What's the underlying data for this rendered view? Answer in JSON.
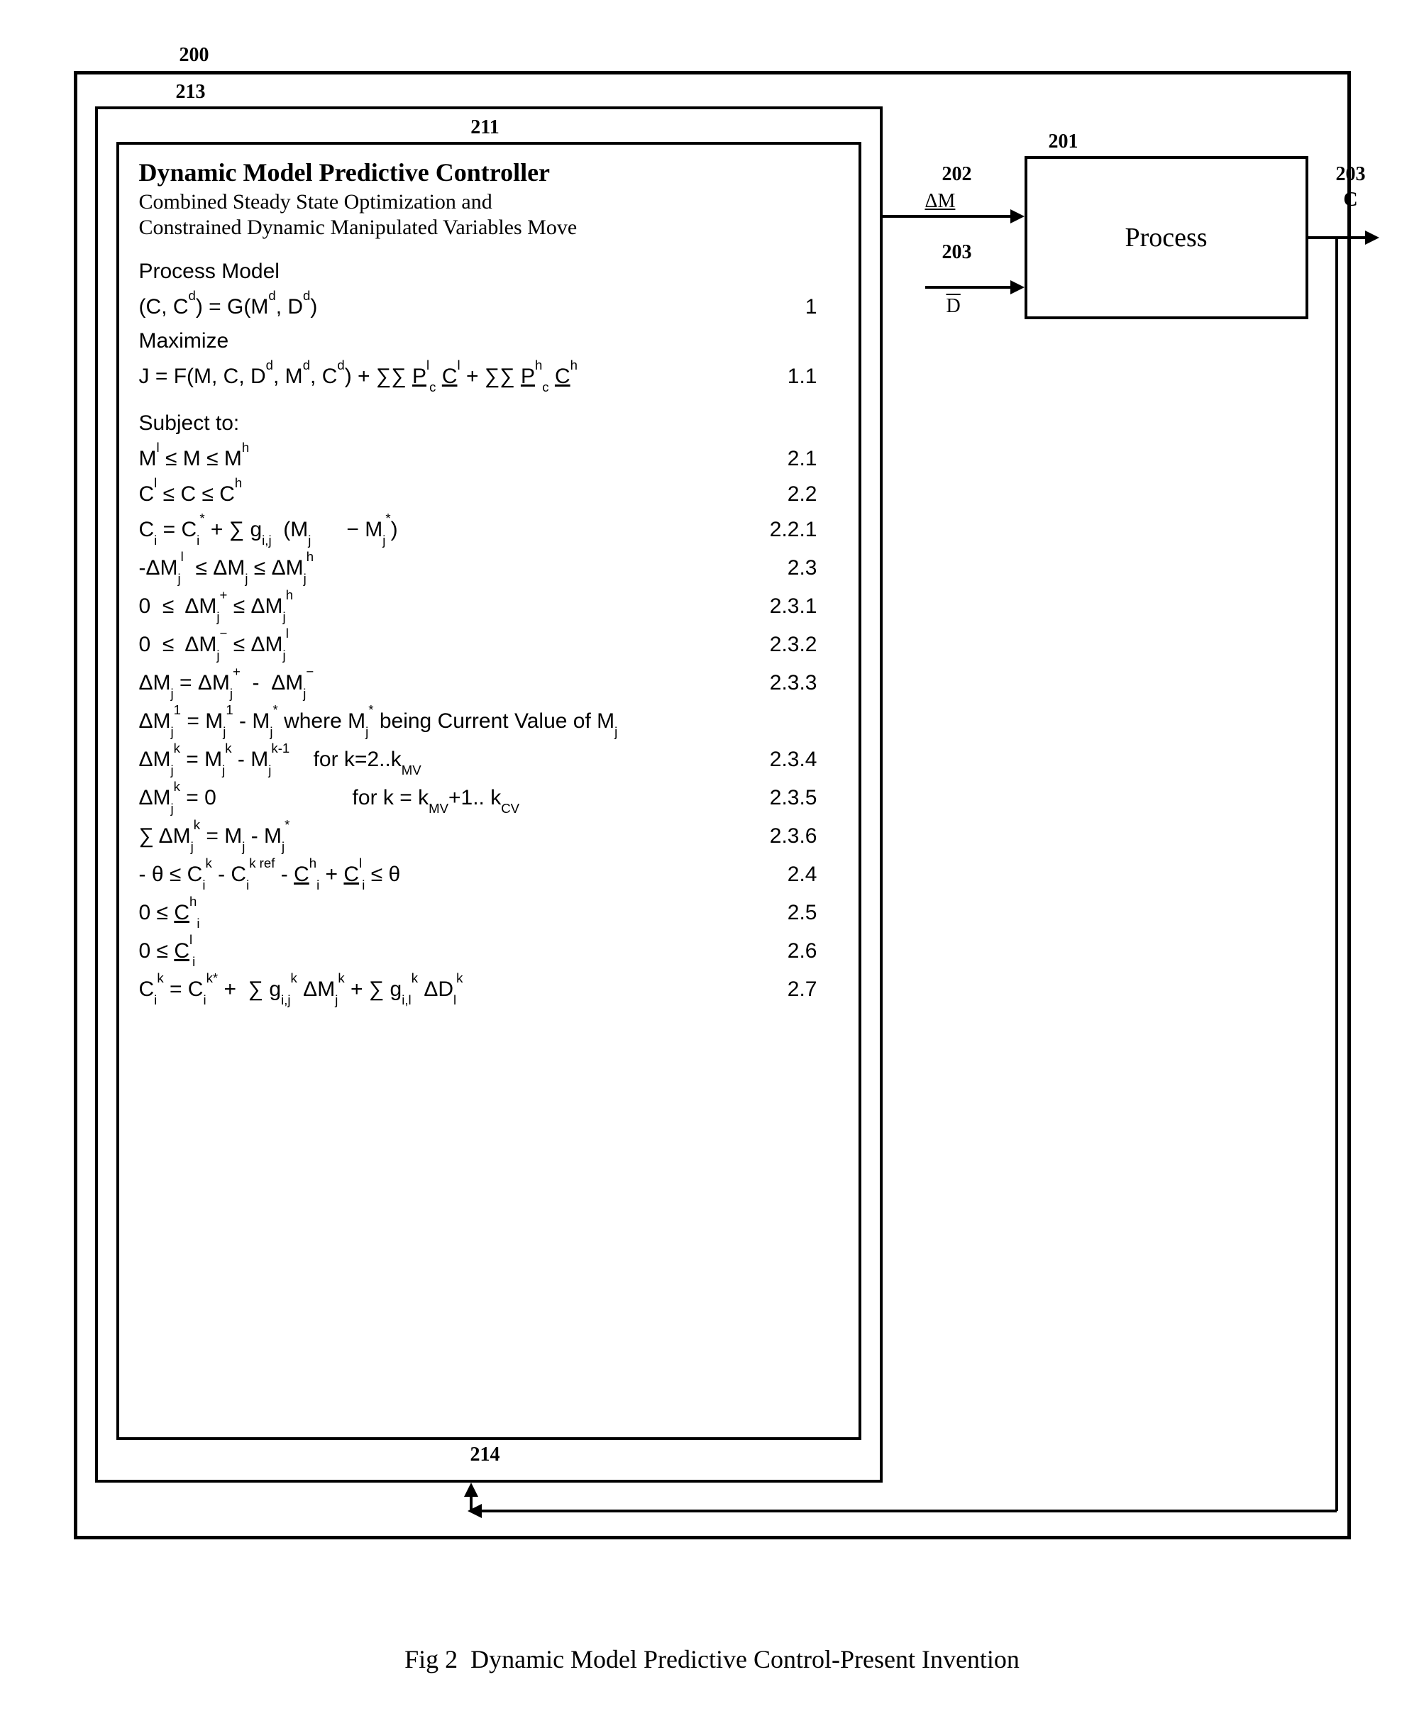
{
  "refs": {
    "outer": "200",
    "controller_outer": "213",
    "controller_inner_top": "211",
    "controller_inner_bottom": "214",
    "process": "201",
    "deltaM_line": "202",
    "D_line": "203",
    "C_out": "203",
    "C_out_letter": "C"
  },
  "signals": {
    "deltaM": "ΔM",
    "D": "D"
  },
  "process_label": "Process",
  "controller": {
    "title": "Dynamic Model Predictive Controller",
    "sub1": "Combined Steady State Optimization and",
    "sub2": "Constrained Dynamic Manipulated Variables Move",
    "proc_model_hdr": "Process Model",
    "maximize_hdr": "Maximize",
    "subject_hdr": "Subject to:"
  },
  "equations": [
    {
      "id": "eq1",
      "expr_html": "(C, C<sup>d</sup>) = G(M<sup>d</sup>, D<sup>d</sup>)",
      "num": "1"
    },
    {
      "id": "eq11",
      "expr_html": "J = F(M, C, D<sup>d</sup>, M<sup>d</sup>, C<sup>d</sup>) + ∑∑ <span class=\"und\">P</span><sup>l</sup><sub>c</sub> <span class=\"und\">C</span><sup>l</sup> + ∑∑ <span class=\"und\">P</span><sup>h</sup><sub>c</sub> <span class=\"und\">C</span><sup>h</sup>",
      "num": "1.1"
    },
    {
      "id": "eq21",
      "expr_html": "M<sup>l</sup> ≤ M ≤ M<sup>h</sup>",
      "num": "2.1"
    },
    {
      "id": "eq22",
      "expr_html": "C<sup>l</sup> ≤ C ≤ C<sup>h</sup>",
      "num": "2.2"
    },
    {
      "id": "eq221",
      "expr_html": "C<sub>i</sub> = C<sub>i</sub><sup>*</sup> + ∑ g<sub>i,j</sub>&nbsp;&nbsp;(M<sub>j</sub>&nbsp;&nbsp;&nbsp;&nbsp;&nbsp; − M<sub>j</sub><sup>*</sup>)",
      "num": "2.2.1"
    },
    {
      "id": "eq23",
      "expr_html": "-ΔM<sub>j</sub><sup>l</sup>&nbsp; ≤ ΔM<sub>j</sub> ≤ ΔM<sub>j</sub><sup>h</sup>",
      "num": "2.3"
    },
    {
      "id": "eq231",
      "expr_html": "0 &nbsp;≤&nbsp; ΔM<sub>j</sub><sup>+</sup> ≤ ΔM<sub>j</sub><sup>h</sup>",
      "num": "2.3.1"
    },
    {
      "id": "eq232",
      "expr_html": "0 &nbsp;≤&nbsp; ΔM<sub>j</sub><sup>−</sup> ≤ ΔM<sub>j</sub><sup>l</sup>",
      "num": "2.3.2"
    },
    {
      "id": "eq233",
      "expr_html": "ΔM<sub>j</sub> = ΔM<sub>j</sub><sup>+</sup> &nbsp;-&nbsp; ΔM<sub>j</sub><sup>−</sup>",
      "num": "2.3.3"
    },
    {
      "id": "eq233b",
      "expr_html": "ΔM<sub>j</sub><sup>1</sup> = M<sub>j</sub><sup>1</sup> - M<sub>j</sub><sup>*</sup> where M<sub>j</sub><sup>*</sup> being Current Value of M<sub>j</sub>",
      "num": ""
    },
    {
      "id": "eq234",
      "expr_html": "ΔM<sub>j</sub><sup>k</sup> = M<sub>j</sub><sup>k</sup> - M<sub>j</sub><sup>k-1</sup>&nbsp;&nbsp;&nbsp; for k=2..k<sub>MV</sub>",
      "num": "2.3.4"
    },
    {
      "id": "eq235",
      "expr_html": "ΔM<sub>j</sub><sup>k</sup> = 0 &nbsp;&nbsp;&nbsp;&nbsp;&nbsp;&nbsp;&nbsp;&nbsp;&nbsp;&nbsp;&nbsp;&nbsp;&nbsp;&nbsp;&nbsp;&nbsp;&nbsp;&nbsp;&nbsp;&nbsp;&nbsp;&nbsp;for k = k<sub>MV</sub>+1.. k<sub>CV</sub>",
      "num": "2.3.5"
    },
    {
      "id": "eq236",
      "expr_html": "∑ ΔM<sub>j</sub><sup>k</sup> = M<sub>j</sub> - M<sub>j</sub><sup>*</sup>",
      "num": "2.3.6"
    },
    {
      "id": "eq24",
      "expr_html": "- θ ≤ C<sub>i</sub><sup>k</sup> - C<sub>i</sub><sup>k ref</sup> - <span class=\"und\">C</span><sup>h</sup><sub>i</sub> + <span class=\"und\">C</span><sup>l</sup><sub>i</sub> ≤ θ",
      "num": "2.4"
    },
    {
      "id": "eq25",
      "expr_html": "0 ≤ <span class=\"und\">C</span><sup>h</sup><sub>i</sub>",
      "num": "2.5"
    },
    {
      "id": "eq26",
      "expr_html": "0 ≤ <span class=\"und\">C</span><sup>l</sup><sub>i</sub>",
      "num": "2.6"
    },
    {
      "id": "eq27",
      "expr_html": "C<sub>i</sub><sup>k</sup> = C<sub>i</sub><sup>k*</sup> + &nbsp;∑ g<sub>i,j</sub><sup>k</sup> ΔM<sub>j</sub><sup>k</sup> + ∑ g<sub>i,l</sub><sup>k</sup> ΔD<sub>l</sub><sup>k</sup>",
      "num": "2.7"
    }
  ],
  "caption": "Fig 2  Dynamic Model Predictive Control-Present Invention",
  "colors": {
    "line": "#000000",
    "bg": "#ffffff"
  }
}
